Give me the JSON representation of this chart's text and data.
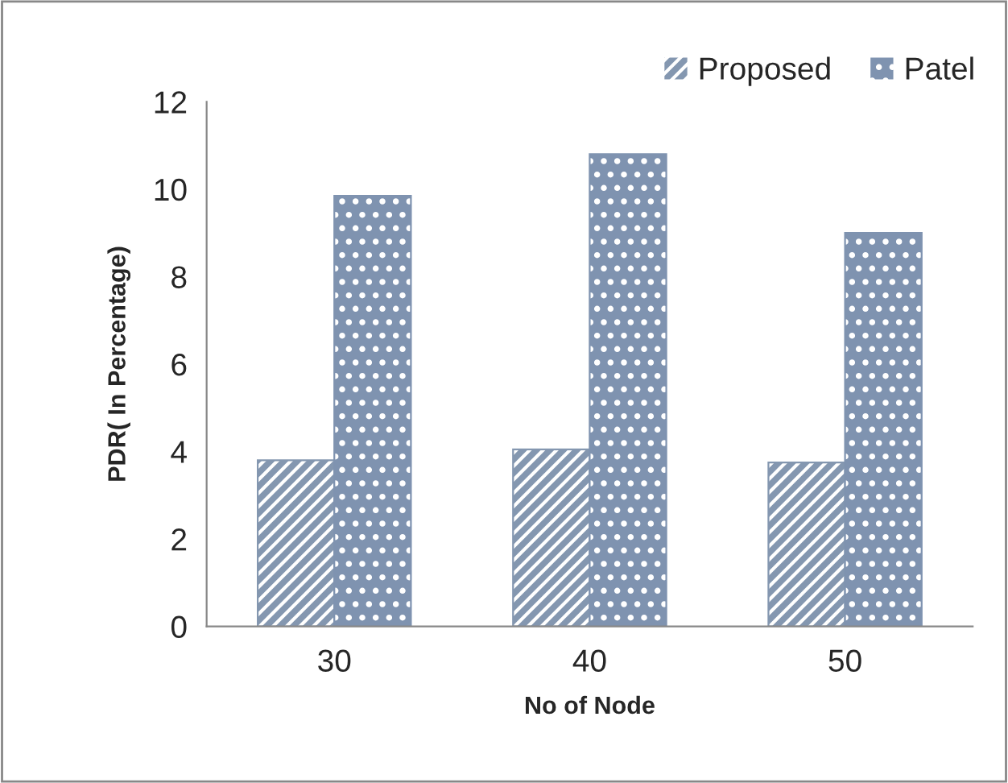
{
  "chart_data": {
    "type": "bar",
    "xlabel": "No of Node",
    "ylabel": "PDR( In Percentage)",
    "categories": [
      "30",
      "40",
      "50"
    ],
    "series": [
      {
        "name": "Proposed",
        "color": "#8497b0",
        "values": [
          3.8,
          4.05,
          3.75
        ]
      },
      {
        "name": "Patel",
        "color": "#7f93b0",
        "values": [
          9.85,
          10.8,
          9.0
        ]
      }
    ],
    "ylim": [
      0,
      12
    ],
    "yticks": [
      0,
      2,
      4,
      6,
      8,
      10,
      12
    ],
    "grid": false,
    "legend": "top right"
  }
}
